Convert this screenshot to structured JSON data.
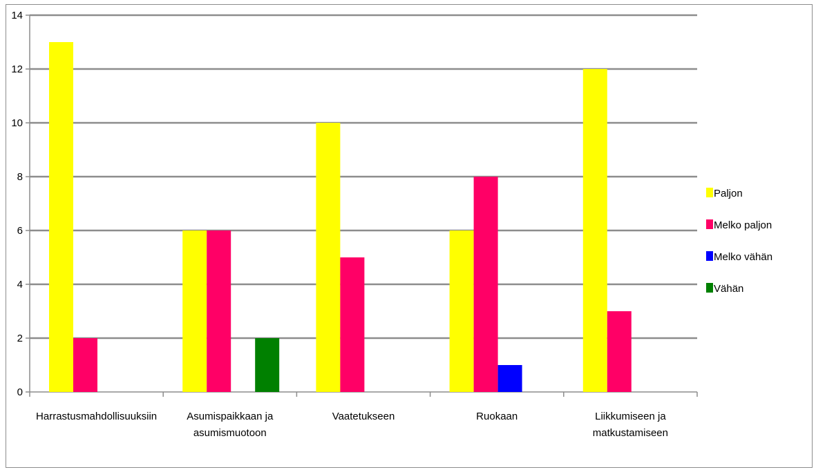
{
  "chart_data": {
    "type": "bar",
    "categories": [
      [
        "Harrastusmahdollisuuksiin"
      ],
      [
        "Asumispaikkaan ja",
        "asumismuotoon"
      ],
      [
        "Vaatetukseen"
      ],
      [
        "Ruokaan"
      ],
      [
        "Liikkumiseen ja",
        "matkustamiseen"
      ]
    ],
    "series": [
      {
        "name": "Paljon",
        "color": "#ffff00",
        "values": [
          13,
          6,
          10,
          6,
          12
        ]
      },
      {
        "name": "Melko paljon",
        "color": "#ff0066",
        "values": [
          2,
          6,
          5,
          8,
          3
        ]
      },
      {
        "name": "Melko vähän",
        "color": "#0000ff",
        "values": [
          0,
          0,
          0,
          1,
          0
        ]
      },
      {
        "name": "Vähän",
        "color": "#008000",
        "values": [
          0,
          2,
          0,
          0,
          0
        ]
      }
    ],
    "ylim": [
      0,
      14
    ],
    "yticks": [
      "0",
      "2",
      "4",
      "6",
      "8",
      "10",
      "12",
      "14"
    ],
    "grid": true,
    "legend": "right"
  }
}
